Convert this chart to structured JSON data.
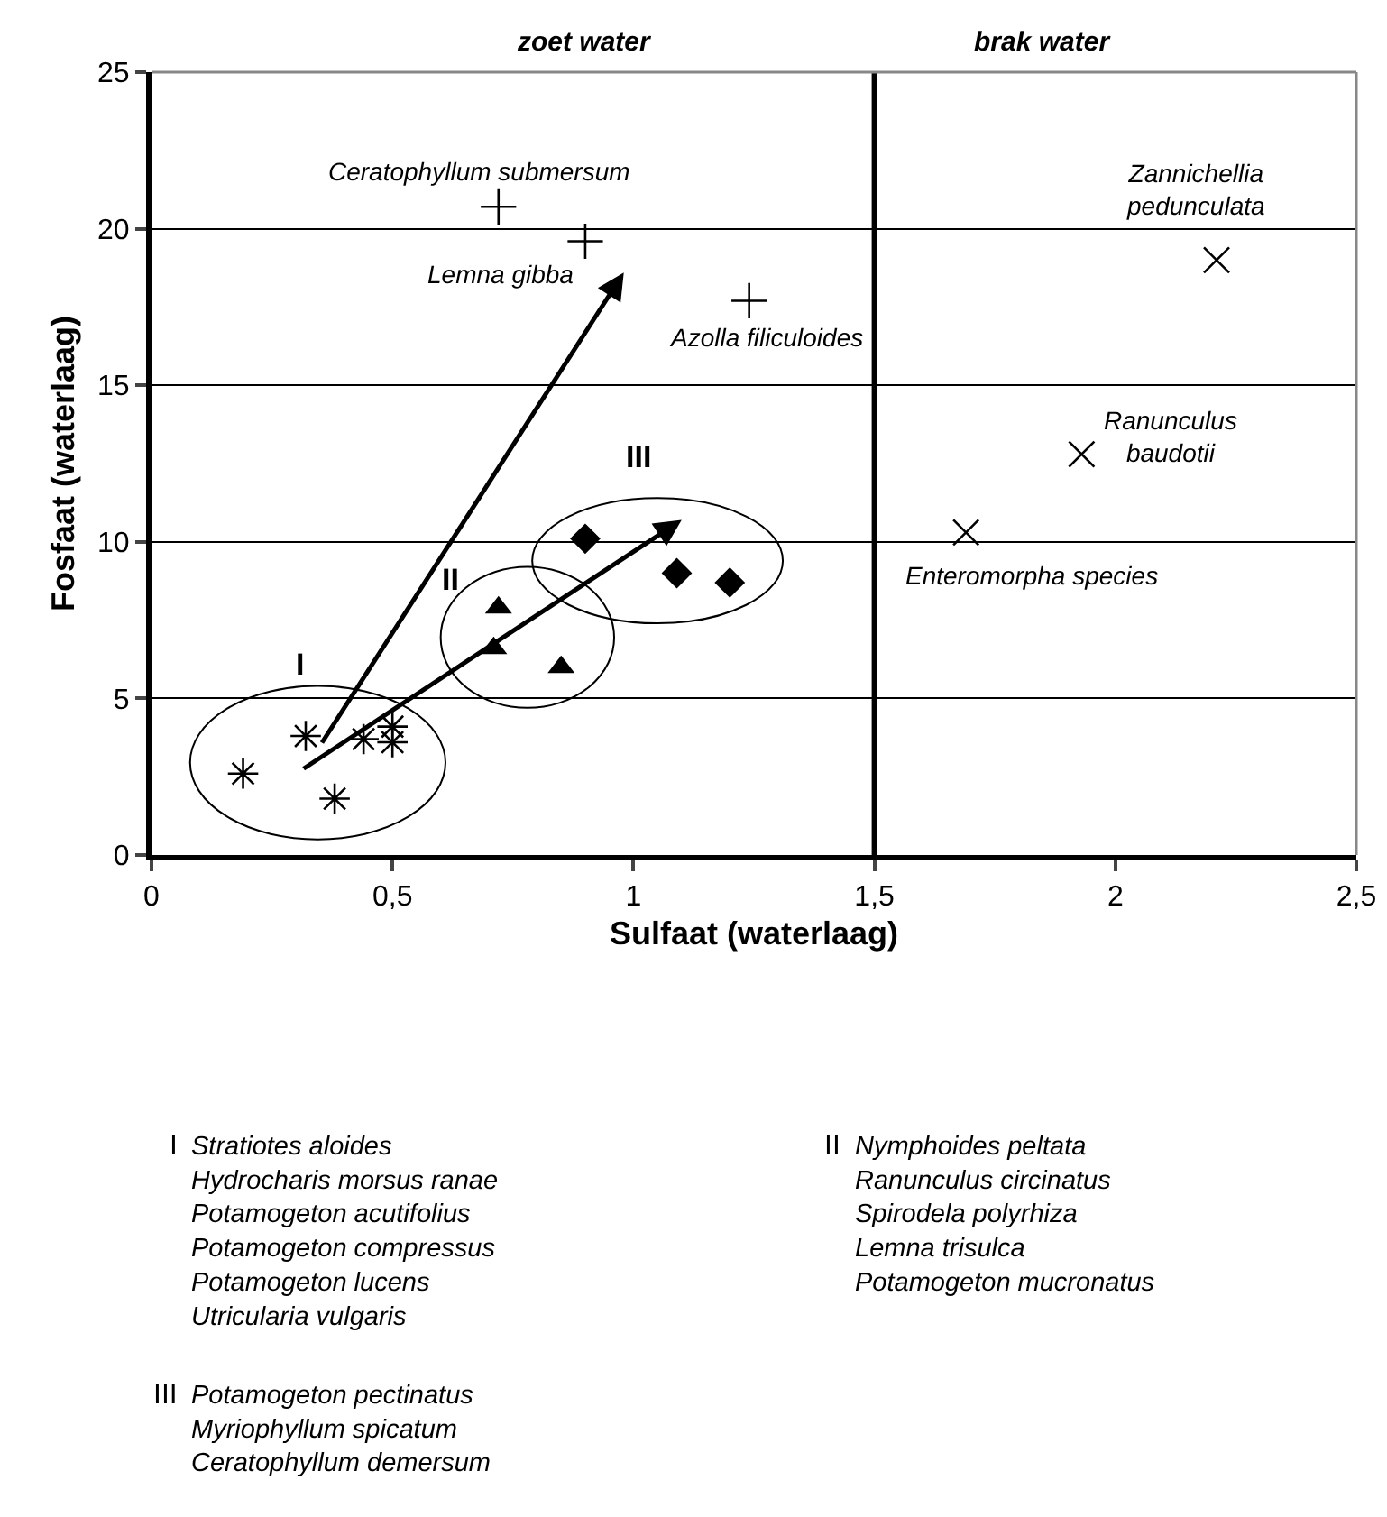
{
  "chart_data": {
    "type": "scatter",
    "xlabel": "Sulfaat (waterlaag)",
    "ylabel": "Fosfaat (waterlaag)",
    "xlim": [
      0,
      2.5
    ],
    "ylim": [
      0,
      25
    ],
    "xticks": [
      0,
      {
        "value": 0.5,
        "label": "0,5"
      },
      1,
      {
        "value": 1.5,
        "label": "1,5"
      },
      2,
      {
        "value": 2.5,
        "label": "2,5"
      }
    ],
    "yticks": [
      0,
      5,
      10,
      15,
      20,
      25
    ],
    "grid": "y",
    "series": [
      {
        "color": "#000000",
        "x": [
          0.19,
          0.32,
          0.38,
          0.44,
          0.5,
          0.5
        ],
        "values": [
          2.6,
          3.8,
          1.8,
          3.7,
          3.6,
          4.1
        ]
      },
      {
        "color": "#000000",
        "marker": "triangle",
        "x": [
          0.72,
          0.71,
          0.85
        ],
        "values": [
          7.9,
          6.6,
          6.0
        ]
      },
      {
        "color": "#000000",
        "marker": "diamond",
        "x": [
          0.9,
          1.09,
          1.2
        ],
        "values": [
          10.1,
          9.0,
          8.7
        ]
      },
      {
        "color": "#000000",
        "x": [
          0.72,
          0.9,
          1.24
        ],
        "values": [
          20.7,
          19.6,
          17.7
        ]
      },
      {
        "color": "#000000",
        "x": [
          2.21,
          1.93,
          1.69
        ],
        "values": [
          19.0,
          12.8,
          10.3
        ]
      }
    ],
    "ref_lines": [
      {
        "axis": "x",
        "value": 1.5,
        "color": "#000000"
      }
    ],
    "annotations": [
      "zoet water",
      "brak water",
      "I",
      "II",
      "III",
      {
        "text": "Ceratophyllum submersum",
        "x": 0.72,
        "y": 20.7
      },
      {
        "text": "Lemna gibba",
        "x": 0.9,
        "y": 19.6
      },
      {
        "text": "Azolla filiculoides",
        "x": 1.24,
        "y": 17.7
      },
      {
        "text": "Zannichellia\npedunculata",
        "x": 2.21,
        "y": 19.0
      },
      {
        "text": "Ranunculus\nbaudotii",
        "x": 1.93,
        "y": 12.8
      },
      {
        "text": "Enteromorpha species",
        "x": 1.69,
        "y": 10.3
      },
      "I",
      "Stratiotes aloides\nHydrocharis morsus ranae\nPotamogeton acutifolius\nPotamogeton compressus\nPotamogeton lucens\nUtricularia vulgaris",
      "II",
      "Nymphoides peltata\nRanunculus circinatus\nSpirodela polyrhiza\nLemna trisulca\nPotamogeton mucronatus",
      "III",
      "Potamogeton pectinatus\nMyriophyllum spicatum\nCeratophyllum demersum"
    ]
  }
}
